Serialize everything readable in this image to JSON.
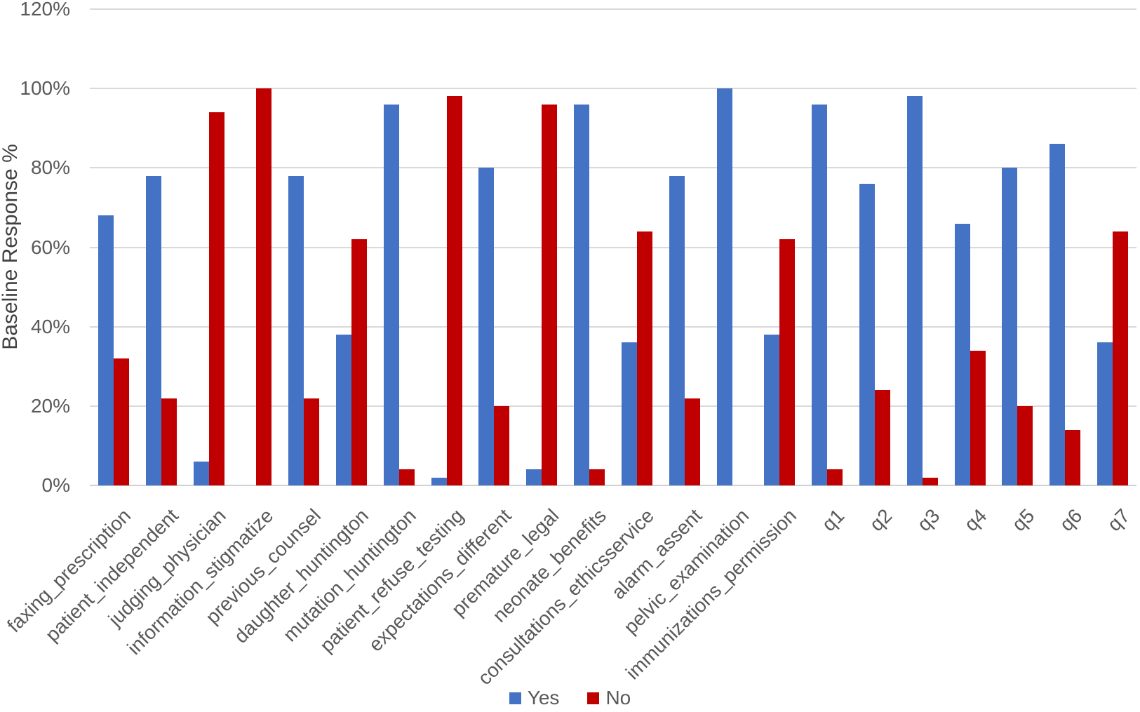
{
  "chart_data": {
    "type": "bar",
    "title": "",
    "ylabel": "Baseline Response %",
    "xlabel": "",
    "ylim": [
      0,
      120
    ],
    "ytick_step": 20,
    "ytick_labels": [
      "0%",
      "20%",
      "40%",
      "60%",
      "80%",
      "100%",
      "120%"
    ],
    "grid": true,
    "legend_position": "bottom-center",
    "categories": [
      "faxing_prescription",
      "patient_independent",
      "judging_physician",
      "information_stigmatize",
      "previous_counsel",
      "daughter_huntington",
      "mutation_huntington",
      "patient_refuse_testing",
      "expectations_different",
      "premature_legal",
      "neonate_benefits",
      "consultations_ethicsservice",
      "alarm_assent",
      "pelvic_examination",
      "immunizations_permission",
      "q1",
      "q2",
      "q3",
      "q4",
      "q5",
      "q6",
      "q7"
    ],
    "series": [
      {
        "name": "Yes",
        "color": "#4472C4",
        "values": [
          68,
          78,
          6,
          0,
          78,
          38,
          96,
          2,
          80,
          4,
          96,
          36,
          78,
          100,
          38,
          96,
          76,
          98,
          66,
          80,
          86,
          36
        ]
      },
      {
        "name": "No",
        "color": "#C00000",
        "values": [
          32,
          22,
          94,
          100,
          22,
          62,
          4,
          98,
          20,
          96,
          4,
          64,
          22,
          0,
          62,
          4,
          24,
          2,
          34,
          20,
          14,
          64
        ]
      }
    ]
  },
  "colors": {
    "gridline": "#D9D9D9",
    "axis_line": "#D0D0D0",
    "tick_text": "#595959",
    "title_text": "#404040"
  }
}
